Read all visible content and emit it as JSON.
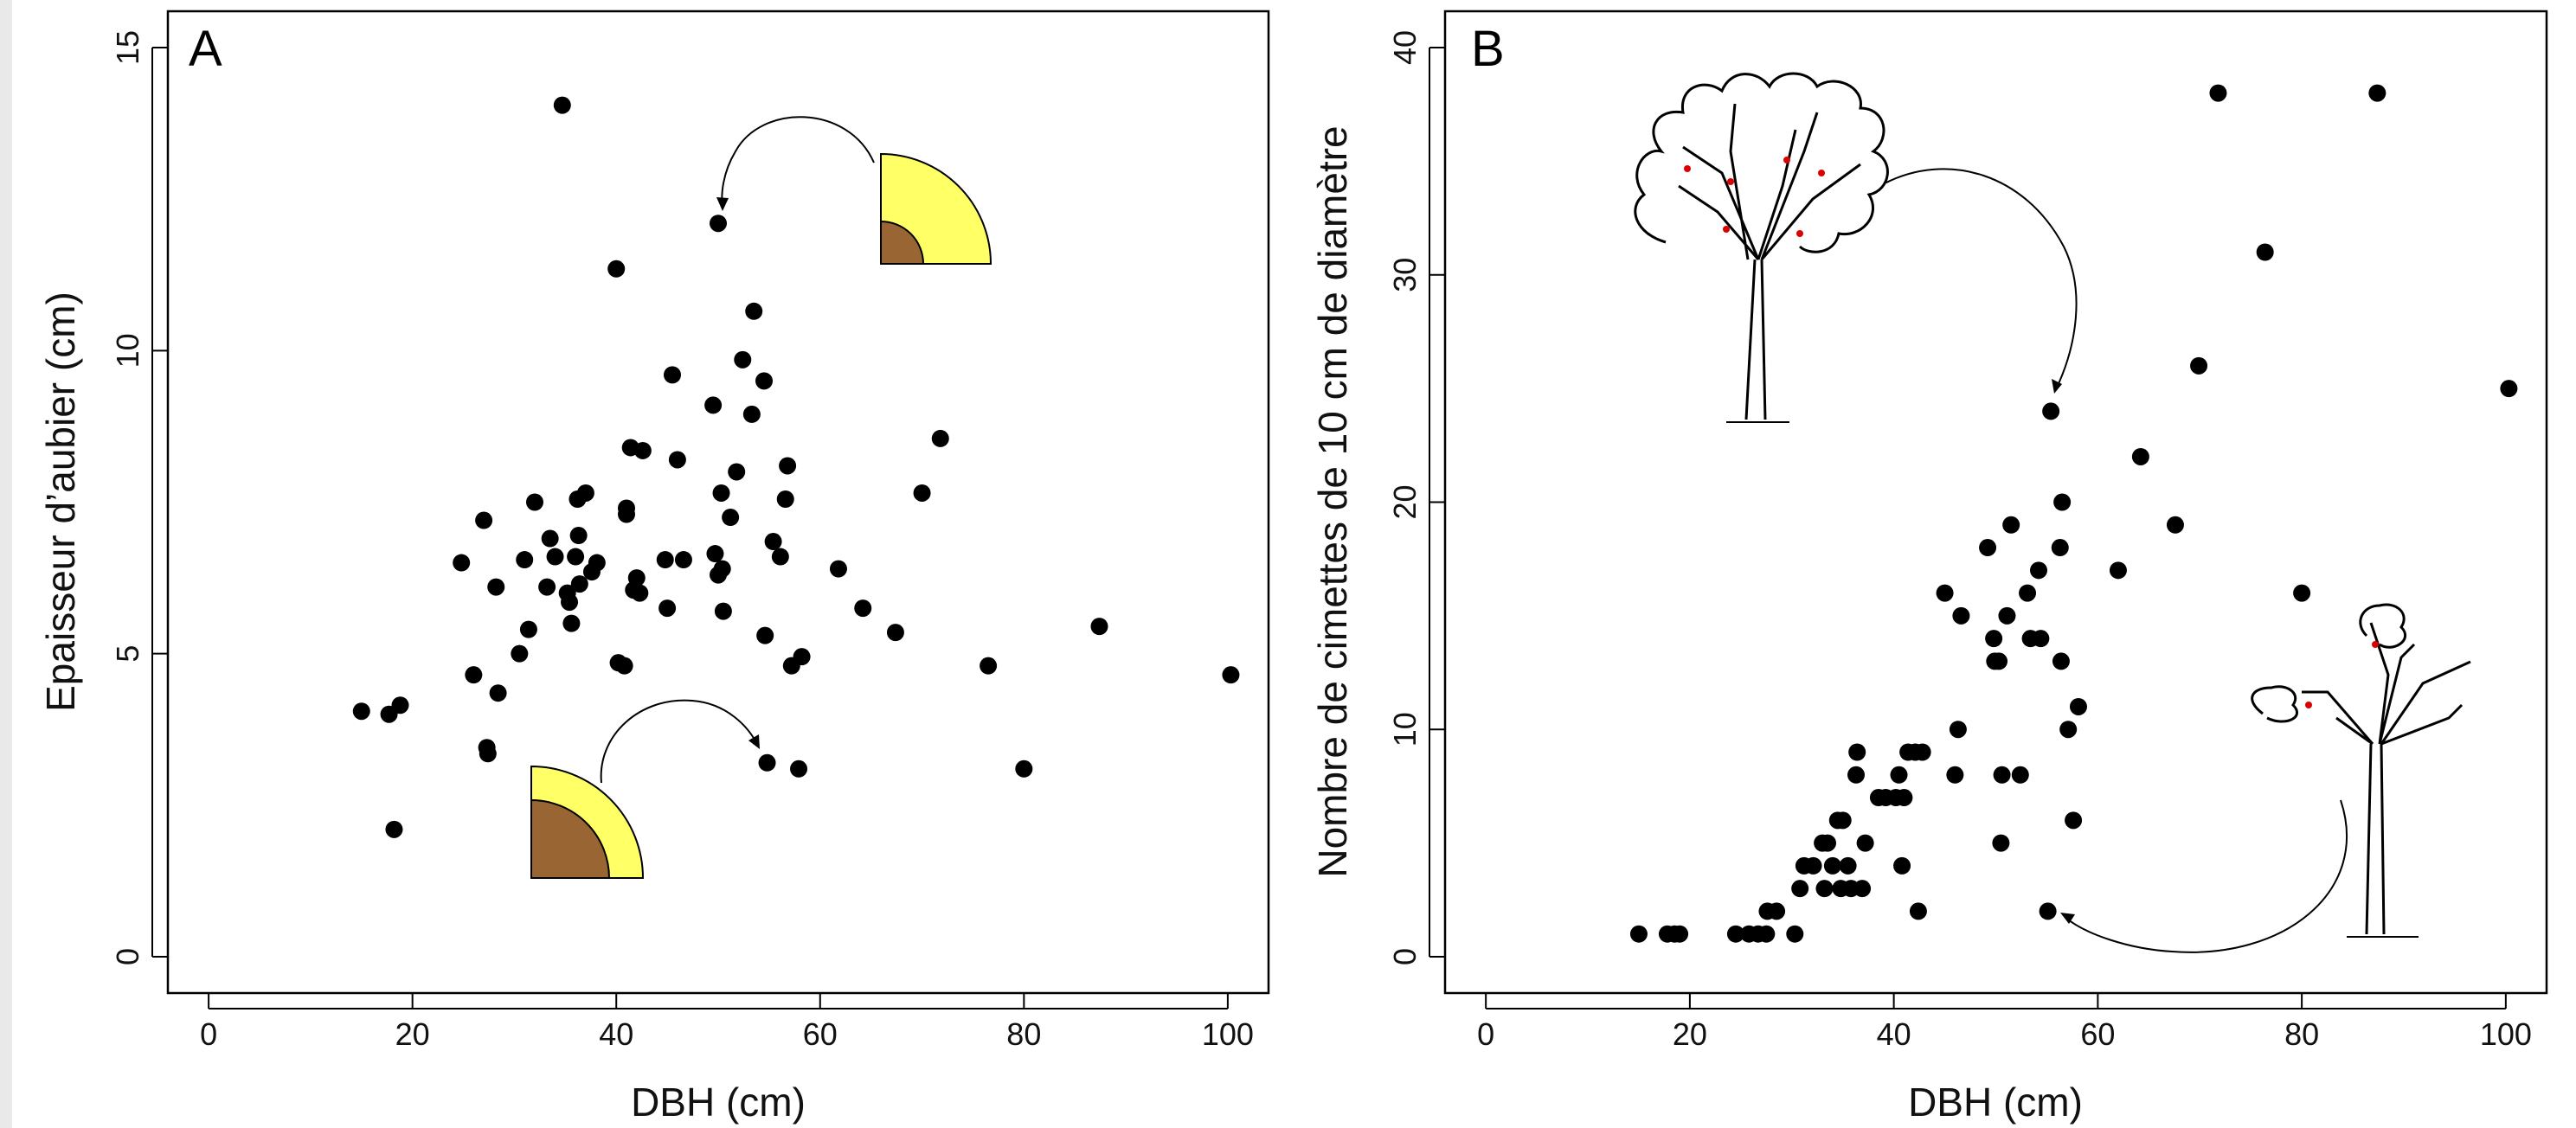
{
  "colors": {
    "sapwood": "#FFFF66",
    "heartwood": "#996633",
    "point": "#000000",
    "branch_mark": "#DD0000"
  },
  "chart_data": [
    {
      "type": "scatter",
      "panel_label": "A",
      "xlabel": "DBH (cm)",
      "ylabel": "Epaisseur d’aubier (cm)",
      "xlim": [
        -4,
        104
      ],
      "ylim": [
        -0.6,
        15.6
      ],
      "xticks": [
        0,
        20,
        40,
        60,
        80,
        100
      ],
      "yticks": [
        0,
        5,
        10,
        15
      ],
      "xtick_labels": [
        "0",
        "20",
        "40",
        "60",
        "80",
        "100"
      ],
      "ytick_labels": [
        "0",
        "5",
        "10",
        "15"
      ],
      "grid": false,
      "series": [
        {
          "points": [
            [
              15,
              4.05
            ],
            [
              17.7,
              4.0
            ],
            [
              18.8,
              4.15
            ],
            [
              18.2,
              2.1
            ],
            [
              24.8,
              6.5
            ],
            [
              26,
              4.65
            ],
            [
              27,
              7.2
            ],
            [
              27.3,
              3.45
            ],
            [
              27.4,
              3.35
            ],
            [
              28.2,
              6.1
            ],
            [
              28.4,
              4.35
            ],
            [
              30.5,
              5.0
            ],
            [
              31,
              6.55
            ],
            [
              31.4,
              5.4
            ],
            [
              32,
              7.5
            ],
            [
              33.2,
              6.1
            ],
            [
              33.5,
              6.9
            ],
            [
              34,
              6.6
            ],
            [
              34.7,
              14.05
            ],
            [
              35.2,
              6.0
            ],
            [
              35.4,
              5.85
            ],
            [
              35.6,
              5.5
            ],
            [
              36,
              6.6
            ],
            [
              36.2,
              7.55
            ],
            [
              36.3,
              6.95
            ],
            [
              36.4,
              6.15
            ],
            [
              37,
              7.65
            ],
            [
              37.6,
              6.35
            ],
            [
              38.1,
              6.5
            ],
            [
              40,
              11.35
            ],
            [
              40.2,
              4.85
            ],
            [
              40.8,
              4.8
            ],
            [
              41,
              7.3
            ],
            [
              41,
              7.4
            ],
            [
              41.4,
              8.4
            ],
            [
              41.7,
              6.05
            ],
            [
              42,
              6.25
            ],
            [
              42.3,
              6.0
            ],
            [
              42.6,
              8.35
            ],
            [
              44.8,
              6.55
            ],
            [
              45,
              5.75
            ],
            [
              45.5,
              9.6
            ],
            [
              46,
              8.2
            ],
            [
              46.6,
              6.55
            ],
            [
              49.5,
              9.1
            ],
            [
              49.7,
              6.65
            ],
            [
              50,
              6.3
            ],
            [
              50,
              12.1
            ],
            [
              50.3,
              7.65
            ],
            [
              50.4,
              6.4
            ],
            [
              50.5,
              5.7
            ],
            [
              51.2,
              7.25
            ],
            [
              51.8,
              8.0
            ],
            [
              52.4,
              9.85
            ],
            [
              53.3,
              8.95
            ],
            [
              53.5,
              10.65
            ],
            [
              54.5,
              9.5
            ],
            [
              54.6,
              5.3
            ],
            [
              54.8,
              3.2
            ],
            [
              55.4,
              6.85
            ],
            [
              56.1,
              6.6
            ],
            [
              56.6,
              7.55
            ],
            [
              56.8,
              8.1
            ],
            [
              57.2,
              4.8
            ],
            [
              57.9,
              3.1
            ],
            [
              58.2,
              4.95
            ],
            [
              61.8,
              6.4
            ],
            [
              64.2,
              5.75
            ],
            [
              67.4,
              5.35
            ],
            [
              70,
              7.65
            ],
            [
              71.8,
              8.55
            ],
            [
              76.5,
              4.8
            ],
            [
              80,
              3.1
            ],
            [
              87.4,
              5.45
            ],
            [
              100.3,
              4.65
            ]
          ]
        }
      ]
    },
    {
      "type": "scatter",
      "panel_label": "B",
      "xlabel": "DBH (cm)",
      "ylabel": "Nombre de cimettes de 10 cm de diamètre",
      "xlim": [
        -4,
        104
      ],
      "ylim": [
        -1.6,
        41.6
      ],
      "xticks": [
        0,
        20,
        40,
        60,
        80,
        100
      ],
      "yticks": [
        0,
        10,
        20,
        30,
        40
      ],
      "xtick_labels": [
        "0",
        "20",
        "40",
        "60",
        "80",
        "100"
      ],
      "ytick_labels": [
        "0",
        "10",
        "20",
        "30",
        "40"
      ],
      "grid": false,
      "series": [
        {
          "points": [
            [
              15,
              1
            ],
            [
              17.8,
              1
            ],
            [
              18.5,
              1
            ],
            [
              19,
              1
            ],
            [
              24.5,
              1
            ],
            [
              25.8,
              1
            ],
            [
              26.7,
              1
            ],
            [
              27.5,
              1
            ],
            [
              27.6,
              2
            ],
            [
              28.5,
              2
            ],
            [
              30.3,
              1
            ],
            [
              30.8,
              3
            ],
            [
              31.2,
              4
            ],
            [
              32.1,
              4
            ],
            [
              33,
              5
            ],
            [
              33.2,
              3
            ],
            [
              33.5,
              5
            ],
            [
              34,
              4
            ],
            [
              34.5,
              6
            ],
            [
              34.8,
              3
            ],
            [
              35,
              6
            ],
            [
              35.5,
              4
            ],
            [
              35.8,
              3
            ],
            [
              36.3,
              8
            ],
            [
              36.4,
              9
            ],
            [
              36.9,
              3
            ],
            [
              37.2,
              5
            ],
            [
              38.5,
              7
            ],
            [
              39.2,
              7
            ],
            [
              40.2,
              7
            ],
            [
              40.5,
              8
            ],
            [
              40.8,
              4
            ],
            [
              41,
              7
            ],
            [
              41.4,
              9
            ],
            [
              42.1,
              9
            ],
            [
              42.4,
              2
            ],
            [
              42.8,
              9
            ],
            [
              45,
              16
            ],
            [
              46,
              8
            ],
            [
              46.3,
              10
            ],
            [
              46.6,
              15
            ],
            [
              49.2,
              18
            ],
            [
              49.8,
              14
            ],
            [
              49.9,
              13
            ],
            [
              50.3,
              13
            ],
            [
              50.5,
              5
            ],
            [
              50.6,
              8
            ],
            [
              51.1,
              15
            ],
            [
              51.5,
              19
            ],
            [
              52.4,
              8
            ],
            [
              53.1,
              16
            ],
            [
              53.4,
              14
            ],
            [
              54.2,
              17
            ],
            [
              54.4,
              14
            ],
            [
              55.1,
              2
            ],
            [
              55.4,
              24
            ],
            [
              56.3,
              18
            ],
            [
              56.4,
              13
            ],
            [
              56.5,
              20
            ],
            [
              57.1,
              10
            ],
            [
              57.6,
              6
            ],
            [
              58.1,
              11
            ],
            [
              62,
              17
            ],
            [
              64.2,
              22
            ],
            [
              67.6,
              19
            ],
            [
              69.9,
              26
            ],
            [
              71.8,
              38
            ],
            [
              76.4,
              31
            ],
            [
              80,
              16
            ],
            [
              87.4,
              38
            ],
            [
              100.3,
              25
            ]
          ]
        }
      ]
    }
  ]
}
